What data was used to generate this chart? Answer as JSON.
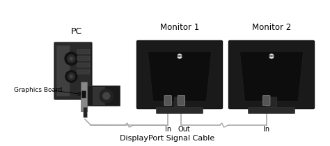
{
  "bg_color": "#ffffff",
  "title": "DisplayPort Signal Cable",
  "pc_label": "PC",
  "graphics_label": "Graphics Board",
  "monitor1_label": "Monitor 1",
  "monitor2_label": "Monitor 2",
  "in_label": "In",
  "out_label": "Out",
  "in2_label": "In",
  "pc_body_color": "#2a2a2a",
  "pc_body_edge": "#111111",
  "pc_panel_color": "#3a3a3a",
  "pc_fan_color": "#1a1a1a",
  "pc_vent_color": "#444444",
  "monitor_back_color": "#1a1a1a",
  "monitor_back_edge": "#111111",
  "monitor_mid_color": "#2a2a2a",
  "monitor_stand_color": "#2a2a2a",
  "monitor_port_color": "#555555",
  "monitor_port_edge": "#888888",
  "cable_color": "#aaaaaa",
  "cable_lw": 1.2,
  "gc_pcb_color": "#1a1a1a",
  "gc_bracket_color": "#888888",
  "gc_fan_color": "#333333",
  "text_color": "#000000",
  "label_fontsize": 8,
  "title_fontsize": 7.5,
  "small_fontsize": 6.5
}
